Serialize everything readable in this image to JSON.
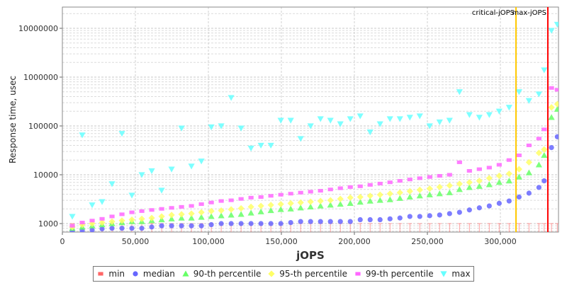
{
  "chart_data": {
    "type": "scatter",
    "title": "",
    "xlabel": "jOPS",
    "ylabel": "Response time, usec",
    "xlim": [
      0,
      340000
    ],
    "ylim": [
      650,
      25000000
    ],
    "yscale": "log",
    "grid": true,
    "legend_position": "bottom",
    "xticks": [
      0,
      50000,
      100000,
      150000,
      200000,
      250000,
      300000
    ],
    "xtick_labels": [
      "0",
      "50,000",
      "100,000",
      "150,000",
      "200,000",
      "250,000",
      "300,000"
    ],
    "yticks": [
      1000,
      10000,
      100000,
      1000000,
      10000000
    ],
    "ytick_labels": [
      "1000",
      "10000",
      "100000",
      "1000000",
      "10000000"
    ],
    "annotations": [
      {
        "label": "critical-jOPS",
        "x": 310700,
        "color": "#ffc800"
      },
      {
        "label": "max-jOPS",
        "x": 332500,
        "color": "#ff0000"
      }
    ],
    "x": [
      6800,
      13600,
      20400,
      27200,
      34000,
      40800,
      47600,
      54400,
      61200,
      68000,
      74800,
      81600,
      88400,
      95200,
      102000,
      108800,
      115600,
      122400,
      129200,
      136000,
      142800,
      149600,
      156400,
      163200,
      170000,
      176800,
      183600,
      190400,
      197200,
      204000,
      210800,
      217600,
      224400,
      231200,
      238000,
      244800,
      251600,
      258400,
      265200,
      272000,
      278800,
      285600,
      292400,
      299200,
      306000,
      312800,
      319600,
      326400,
      330000,
      335000,
      339000
    ],
    "series": [
      {
        "name": "min",
        "marker": "square",
        "color": "#ff6666",
        "values": [
          1000,
          1000,
          1000,
          1000,
          1000,
          1000,
          1000,
          1000,
          1000,
          1000,
          1000,
          1000,
          1000,
          1000,
          1000,
          1000,
          1000,
          1000,
          1000,
          1000,
          1000,
          1000,
          1000,
          1000,
          1000,
          1000,
          1000,
          1000,
          1000,
          1000,
          1000,
          1000,
          1000,
          1000,
          1000,
          1000,
          1000,
          1000,
          1000,
          1000,
          1000,
          1000,
          1000,
          1000,
          1000,
          1000,
          1000,
          1000,
          1000,
          1000,
          1000
        ]
      },
      {
        "name": "median",
        "marker": "circle",
        "color": "#6666ff",
        "values": [
          700,
          720,
          740,
          780,
          800,
          800,
          800,
          800,
          850,
          900,
          900,
          900,
          900,
          900,
          950,
          1000,
          1000,
          1000,
          1000,
          1000,
          1000,
          1000,
          1050,
          1100,
          1100,
          1100,
          1100,
          1100,
          1100,
          1200,
          1200,
          1200,
          1250,
          1300,
          1400,
          1400,
          1450,
          1500,
          1600,
          1700,
          1900,
          2100,
          2300,
          2600,
          2900,
          3500,
          4200,
          5500,
          7500,
          36000,
          60000
        ]
      },
      {
        "name": "90-th percentile",
        "marker": "triangle-up",
        "color": "#66ff66",
        "values": [
          800,
          850,
          900,
          950,
          1000,
          1050,
          1100,
          1100,
          1150,
          1200,
          1250,
          1300,
          1300,
          1350,
          1400,
          1450,
          1500,
          1550,
          1650,
          1750,
          1850,
          1950,
          2000,
          2100,
          2200,
          2300,
          2400,
          2500,
          2600,
          2750,
          2900,
          3000,
          3100,
          3300,
          3500,
          3700,
          3900,
          4100,
          4300,
          5000,
          5500,
          5800,
          6300,
          7000,
          7500,
          9000,
          11000,
          16000,
          25000,
          150000,
          220000
        ]
      },
      {
        "name": "95-th percentile",
        "marker": "diamond",
        "color": "#ffff66",
        "values": [
          850,
          950,
          1000,
          1050,
          1100,
          1150,
          1200,
          1250,
          1300,
          1400,
          1500,
          1550,
          1600,
          1700,
          1800,
          1850,
          1950,
          2050,
          2200,
          2300,
          2400,
          2500,
          2600,
          2700,
          2800,
          2900,
          3000,
          3200,
          3400,
          3500,
          3700,
          3900,
          4100,
          4300,
          4600,
          4900,
          5200,
          5600,
          6000,
          6500,
          7000,
          7500,
          8500,
          9500,
          10500,
          13000,
          18000,
          28000,
          33000,
          240000,
          280000
        ]
      },
      {
        "name": "99-th percentile",
        "marker": "square",
        "color": "#ff66ff",
        "values": [
          900,
          1050,
          1150,
          1250,
          1400,
          1550,
          1700,
          1800,
          1900,
          2000,
          2100,
          2200,
          2300,
          2500,
          2700,
          2900,
          3000,
          3200,
          3400,
          3500,
          3700,
          3900,
          4100,
          4300,
          4500,
          4700,
          5000,
          5300,
          5600,
          5800,
          6200,
          6600,
          7000,
          7500,
          8000,
          8500,
          9000,
          9500,
          10000,
          18000,
          12000,
          13000,
          14000,
          16000,
          20000,
          25000,
          40000,
          55000,
          85000,
          600000,
          550000
        ]
      },
      {
        "name": "max",
        "marker": "triangle-down",
        "color": "#66ffff",
        "values": [
          1400,
          65000,
          2400,
          2800,
          6500,
          70000,
          3800,
          10000,
          12000,
          4800,
          13000,
          90000,
          15000,
          19000,
          95000,
          100000,
          380000,
          90000,
          35000,
          40000,
          40000,
          130000,
          130000,
          55000,
          100000,
          140000,
          130000,
          110000,
          140000,
          160000,
          75000,
          110000,
          140000,
          140000,
          150000,
          160000,
          100000,
          120000,
          130000,
          500000,
          170000,
          150000,
          170000,
          200000,
          240000,
          500000,
          330000,
          450000,
          1400000,
          9000000,
          12000000
        ]
      }
    ]
  }
}
